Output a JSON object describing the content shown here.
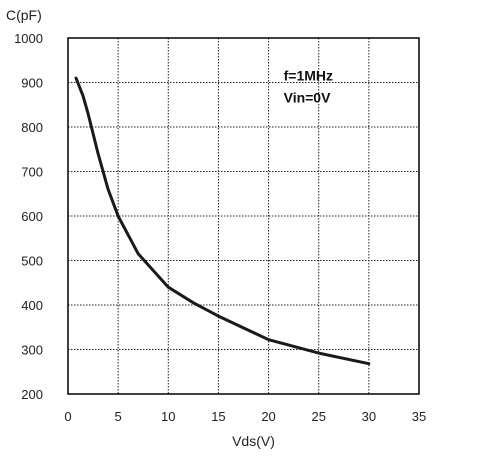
{
  "chart_data": {
    "type": "line",
    "title": "",
    "xlabel": "Vds(V)",
    "ylabel": "C(pF)",
    "xlim": [
      0,
      35
    ],
    "ylim": [
      200,
      1000
    ],
    "x_ticks": [
      0,
      5,
      10,
      15,
      20,
      25,
      30,
      35
    ],
    "y_ticks": [
      200,
      300,
      400,
      500,
      600,
      700,
      800,
      900,
      1000
    ],
    "grid": true,
    "series": [
      {
        "x": [
          0.8,
          1.5,
          2,
          3,
          4,
          5,
          7,
          10,
          12.5,
          15,
          20,
          25,
          30
        ],
        "values": [
          910,
          870,
          830,
          740,
          660,
          600,
          515,
          440,
          405,
          375,
          322,
          292,
          268
        ]
      }
    ],
    "annotations": [
      "f=1MHz",
      "Vin=0V"
    ],
    "colors": {
      "line": "#1a1a1a",
      "grid": "#222222",
      "axis": "#000000",
      "background": "#ffffff"
    }
  }
}
